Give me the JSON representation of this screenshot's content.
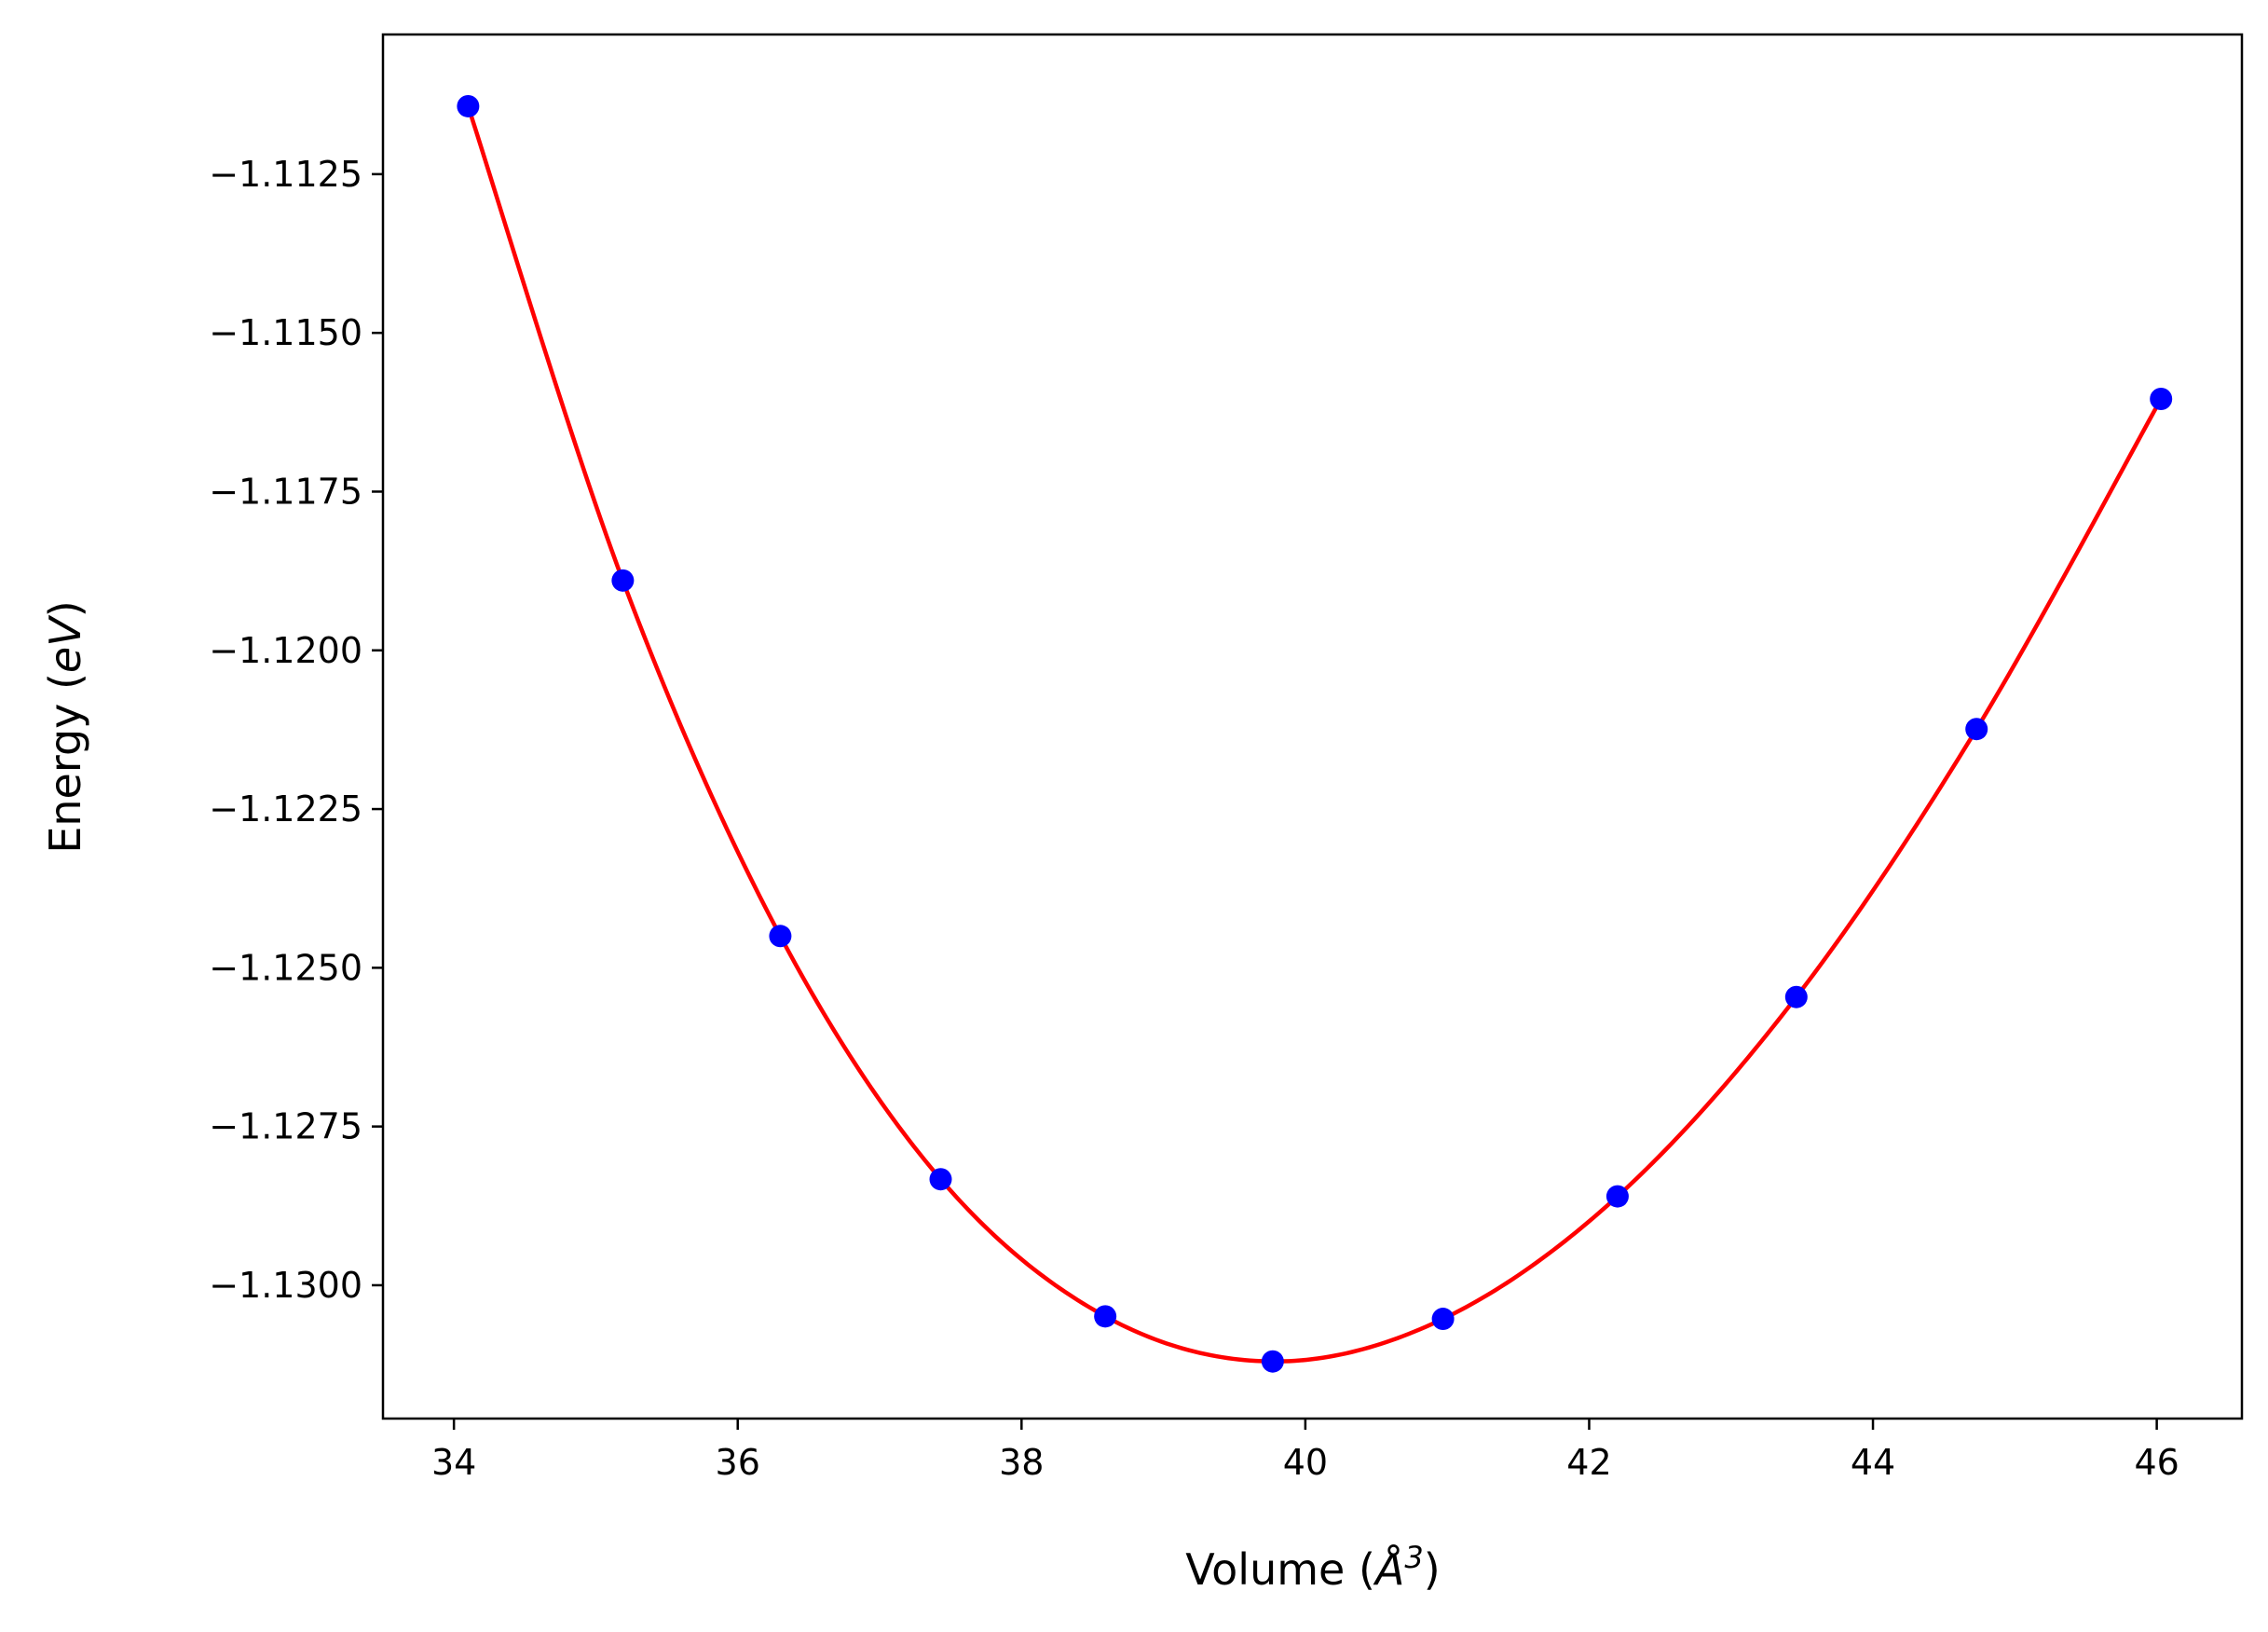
{
  "chart_data": {
    "type": "scatter",
    "title": "",
    "xlabel": "Volume",
    "xlabel_unit_prefix": "(",
    "xlabel_unit_base": "Å",
    "xlabel_unit_exp": "3",
    "xlabel_unit_suffix": ")",
    "ylabel": "Energy",
    "ylabel_unit_prefix": "(",
    "ylabel_unit_var": "eV",
    "ylabel_unit_suffix": ")",
    "xlim": [
      33.5,
      46.6
    ],
    "ylim": [
      -1.1321,
      -1.1103
    ],
    "xticks": [
      34,
      36,
      38,
      40,
      42,
      44,
      46
    ],
    "xtick_labels": [
      "34",
      "36",
      "38",
      "40",
      "42",
      "44",
      "46"
    ],
    "yticks": [
      -1.1125,
      -1.115,
      -1.1175,
      -1.12,
      -1.1225,
      -1.125,
      -1.1275,
      -1.13
    ],
    "ytick_labels": [
      "−1.1125",
      "−1.1150",
      "−1.1175",
      "−1.1200",
      "−1.1225",
      "−1.1250",
      "−1.1275",
      "−1.1300"
    ],
    "grid": false,
    "legend": "none",
    "series": [
      {
        "kind": "points",
        "color": "#0000ff",
        "x": [
          34.1,
          35.19,
          36.3,
          37.43,
          38.59,
          39.77,
          40.97,
          42.2,
          43.46,
          44.73,
          46.03
        ],
        "y": [
          -1.11143,
          -1.1189,
          -1.1245,
          -1.12833,
          -1.13049,
          -1.1312,
          -1.13053,
          -1.1286,
          -1.12546,
          -1.12124,
          -1.11604
        ]
      },
      {
        "kind": "fit-curve",
        "color": "#ff0000"
      }
    ]
  }
}
